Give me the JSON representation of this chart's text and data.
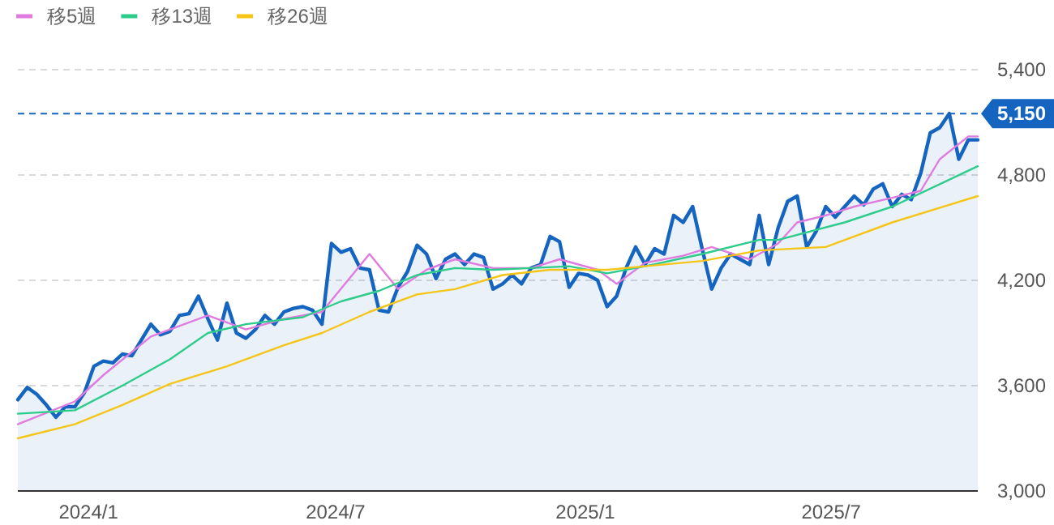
{
  "chart_data": {
    "type": "area",
    "legend": "top left",
    "grid": "y",
    "marker": "none",
    "x": [
      "2023-11-10",
      "2023-11-17",
      "2023-11-24",
      "2023-12-01",
      "2023-12-08",
      "2023-12-15",
      "2023-12-22",
      "2023-12-29",
      "2024-01-05",
      "2024-01-12",
      "2024-01-19",
      "2024-01-26",
      "2024-02-02",
      "2024-02-09",
      "2024-02-16",
      "2024-02-23",
      "2024-03-01",
      "2024-03-08",
      "2024-03-15",
      "2024-03-22",
      "2024-03-29",
      "2024-04-05",
      "2024-04-12",
      "2024-04-19",
      "2024-04-26",
      "2024-05-03",
      "2024-05-10",
      "2024-05-17",
      "2024-05-24",
      "2024-05-31",
      "2024-06-07",
      "2024-06-14",
      "2024-06-21",
      "2024-06-28",
      "2024-07-05",
      "2024-07-12",
      "2024-07-19",
      "2024-07-26",
      "2024-08-02",
      "2024-08-09",
      "2024-08-16",
      "2024-08-23",
      "2024-08-30",
      "2024-09-06",
      "2024-09-13",
      "2024-09-20",
      "2024-09-27",
      "2024-10-04",
      "2024-10-11",
      "2024-10-18",
      "2024-10-25",
      "2024-11-01",
      "2024-11-08",
      "2024-11-15",
      "2024-11-22",
      "2024-11-29",
      "2024-12-06",
      "2024-12-13",
      "2024-12-20",
      "2024-12-27",
      "2025-01-03",
      "2025-01-10",
      "2025-01-17",
      "2025-01-24",
      "2025-01-31",
      "2025-02-07",
      "2025-02-14",
      "2025-02-21",
      "2025-02-28",
      "2025-03-07",
      "2025-03-14",
      "2025-03-21",
      "2025-03-28",
      "2025-04-04",
      "2025-04-11",
      "2025-04-18",
      "2025-04-25",
      "2025-05-02",
      "2025-05-09",
      "2025-05-16",
      "2025-05-23",
      "2025-05-30",
      "2025-06-06",
      "2025-06-13",
      "2025-06-20",
      "2025-06-27",
      "2025-07-04",
      "2025-07-11",
      "2025-07-18",
      "2025-07-25",
      "2025-08-01",
      "2025-08-08",
      "2025-08-15",
      "2025-08-22",
      "2025-08-29",
      "2025-09-05",
      "2025-09-12",
      "2025-09-19",
      "2025-09-26",
      "2025-10-03",
      "2025-10-10",
      "2025-10-17"
    ],
    "xlim": [
      "2023-11-10",
      "2025-10-17"
    ],
    "xticks": [
      {
        "value": "2024-01-01",
        "label": "2024/1"
      },
      {
        "value": "2024-07-01",
        "label": "2024/7"
      },
      {
        "value": "2025-01-01",
        "label": "2025/1"
      },
      {
        "value": "2025-07-01",
        "label": "2025/7"
      }
    ],
    "ylim": [
      3000,
      5400
    ],
    "yticks": [
      {
        "value": 3000,
        "label": "3,000"
      },
      {
        "value": 3600,
        "label": "3,600"
      },
      {
        "value": 4200,
        "label": "4,200"
      },
      {
        "value": 4800,
        "label": "4,800"
      },
      {
        "value": 5400,
        "label": "5,400"
      }
    ],
    "ref_lines": [
      {
        "axis": "y",
        "value": 5150,
        "label": "5,150",
        "color": "#1565c0",
        "line_style": "dashed"
      }
    ],
    "series": [
      {
        "color": "#1565c0",
        "values": [
          3520,
          3590,
          3550,
          3490,
          3420,
          3480,
          3480,
          3560,
          3710,
          3740,
          3730,
          3780,
          3770,
          3860,
          3950,
          3890,
          3910,
          4000,
          4010,
          4110,
          3980,
          3860,
          4070,
          3900,
          3870,
          3920,
          4000,
          3950,
          4020,
          4040,
          4050,
          4030,
          3950,
          4410,
          4360,
          4380,
          4270,
          4260,
          4030,
          4020,
          4160,
          4250,
          4400,
          4350,
          4210,
          4320,
          4350,
          4290,
          4350,
          4330,
          4150,
          4180,
          4230,
          4180,
          4270,
          4290,
          4450,
          4420,
          4160,
          4240,
          4230,
          4200,
          4050,
          4110,
          4270,
          4390,
          4290,
          4380,
          4350,
          4570,
          4530,
          4620,
          4380,
          4150,
          4270,
          4350,
          4320,
          4290,
          4570,
          4290,
          4500,
          4650,
          4680,
          4390,
          4480,
          4620,
          4560,
          4620,
          4680,
          4630,
          4720,
          4750,
          4620,
          4690,
          4660,
          4810,
          5040,
          5070,
          5150,
          4890,
          5000,
          5000
        ]
      },
      {
        "type": "line",
        "name": "移5週",
        "color": "#e07be0",
        "x": [
          "2023-11-10",
          "2023-12-22",
          "2024-01-12",
          "2024-02-16",
          "2024-03-29",
          "2024-04-26",
          "2024-05-24",
          "2024-06-21",
          "2024-07-26",
          "2024-08-16",
          "2024-09-06",
          "2024-09-27",
          "2024-10-25",
          "2024-11-22",
          "2024-12-13",
          "2025-01-10",
          "2025-01-24",
          "2025-02-14",
          "2025-03-14",
          "2025-04-04",
          "2025-05-02",
          "2025-05-23",
          "2025-06-06",
          "2025-06-27",
          "2025-07-18",
          "2025-08-15",
          "2025-09-05",
          "2025-09-19",
          "2025-10-10",
          "2025-10-17"
        ],
        "values": [
          3380,
          3510,
          3660,
          3880,
          4000,
          3920,
          3980,
          4020,
          4350,
          4150,
          4260,
          4320,
          4270,
          4270,
          4320,
          4260,
          4180,
          4300,
          4340,
          4390,
          4320,
          4410,
          4530,
          4570,
          4620,
          4670,
          4710,
          4890,
          5020,
          5020
        ]
      },
      {
        "type": "line",
        "name": "移13週",
        "color": "#2ecc8a",
        "x": [
          "2023-11-10",
          "2023-12-22",
          "2024-01-26",
          "2024-03-01",
          "2024-03-29",
          "2024-04-26",
          "2024-06-07",
          "2024-07-05",
          "2024-08-02",
          "2024-08-30",
          "2024-09-27",
          "2024-10-25",
          "2024-11-22",
          "2024-12-20",
          "2025-01-17",
          "2025-02-14",
          "2025-03-28",
          "2025-05-09",
          "2025-05-23",
          "2025-07-11",
          "2025-08-15",
          "2025-10-17"
        ],
        "values": [
          3440,
          3460,
          3600,
          3750,
          3900,
          3950,
          3990,
          4080,
          4140,
          4230,
          4270,
          4260,
          4270,
          4280,
          4240,
          4280,
          4350,
          4430,
          4430,
          4530,
          4620,
          4850
        ]
      },
      {
        "type": "line",
        "name": "移26週",
        "color": "#f5c518",
        "x": [
          "2023-11-10",
          "2023-12-22",
          "2024-01-26",
          "2024-03-01",
          "2024-04-12",
          "2024-05-24",
          "2024-06-21",
          "2024-07-26",
          "2024-08-30",
          "2024-09-27",
          "2024-11-01",
          "2024-12-06",
          "2025-01-17",
          "2025-02-14",
          "2025-03-28",
          "2025-05-09",
          "2025-06-27",
          "2025-08-15",
          "2025-10-17"
        ],
        "values": [
          3300,
          3380,
          3490,
          3610,
          3710,
          3830,
          3900,
          4020,
          4120,
          4150,
          4230,
          4260,
          4260,
          4280,
          4310,
          4370,
          4390,
          4530,
          4680
        ]
      }
    ]
  }
}
